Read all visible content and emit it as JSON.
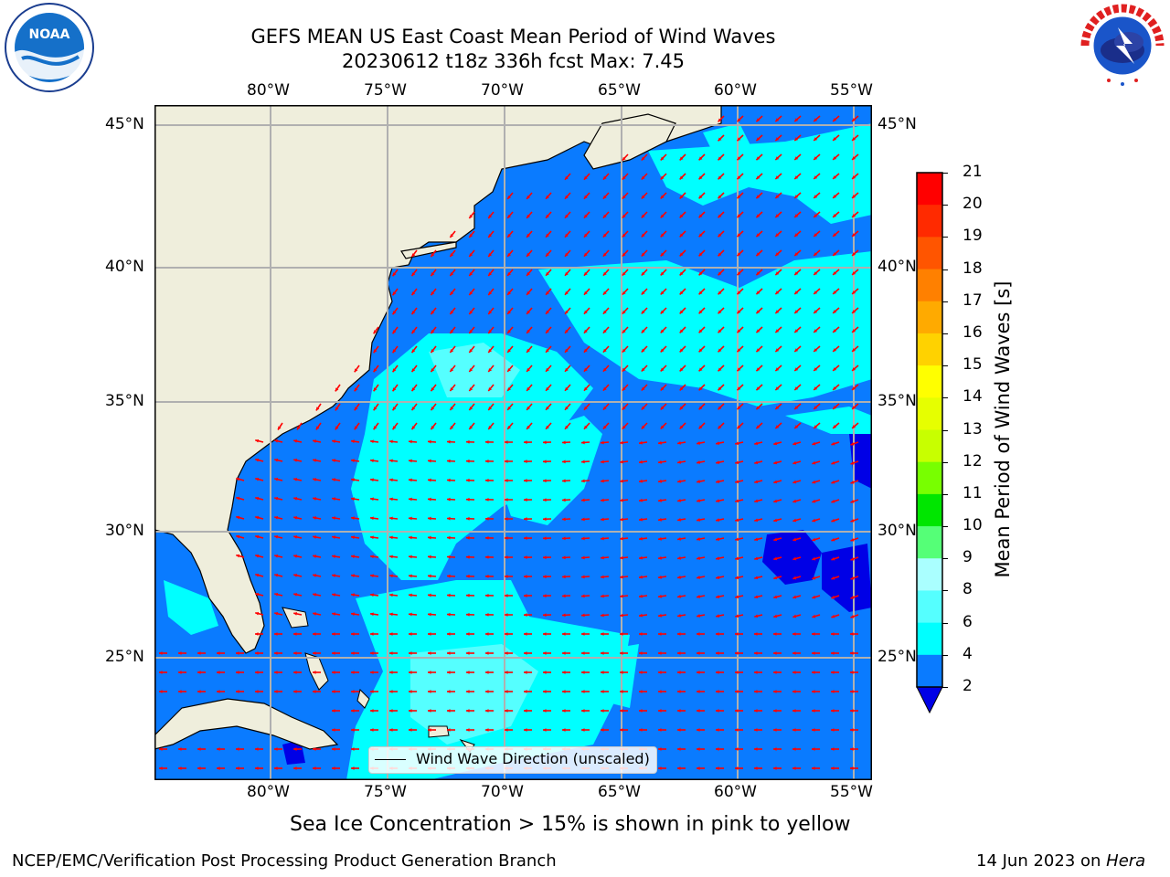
{
  "header": {
    "title_line1": "GEFS MEAN US East Coast Mean Period of Wind Waves",
    "title_line2": "20230612 t18z 336h fcst   Max: 7.45"
  },
  "logos": {
    "left_name": "noaa-logo",
    "left_text": "NOAA",
    "right_name": "nws-logo",
    "right_text": "NATIONAL WEATHER SERVICE"
  },
  "map": {
    "lon_ticks_top": [
      "80°W",
      "75°W",
      "70°W",
      "65°W",
      "60°W",
      "55°W"
    ],
    "lon_ticks_bottom": [
      "80°W",
      "75°W",
      "70°W",
      "65°W",
      "60°W",
      "55°W"
    ],
    "lat_ticks_left": [
      "45°N",
      "40°N",
      "35°N",
      "30°N",
      "25°N"
    ],
    "lat_ticks_right": [
      "45°N",
      "40°N",
      "35°N",
      "30°N",
      "25°N"
    ],
    "legend_label": "Wind Wave Direction (unscaled)",
    "colors": {
      "land": "#efeedc",
      "ocean_2_4": "#0a7bff",
      "ocean_4_6": "#00ffff",
      "ocean_6_8": "#55ffff",
      "ocean_low": "#0000e6",
      "arrow": "#ff0000",
      "grid": "#b0b0b0"
    }
  },
  "colorbar": {
    "label": "Mean Period of Wind Waves [s]",
    "ticks": [
      "21",
      "20",
      "19",
      "18",
      "17",
      "16",
      "15",
      "14",
      "13",
      "12",
      "11",
      "10",
      "9",
      "8",
      "6",
      "4",
      "2"
    ],
    "colors": [
      "#ff0000",
      "#ff2a00",
      "#ff5500",
      "#ff8000",
      "#ffaa00",
      "#ffd200",
      "#ffff00",
      "#e6ff00",
      "#c8ff00",
      "#78ff00",
      "#00e600",
      "#55ff77",
      "#aaffff",
      "#55ffff",
      "#00ffff",
      "#0a7bff"
    ],
    "under_color": "#0000e6"
  },
  "notes": {
    "sea_ice": "Sea Ice Concentration > 15% is shown in pink to yellow"
  },
  "footer": {
    "left": "NCEP/EMC/Verification Post Processing Product Generation Branch",
    "right_date": "14 Jun 2023 on ",
    "right_machine": "Hera"
  }
}
